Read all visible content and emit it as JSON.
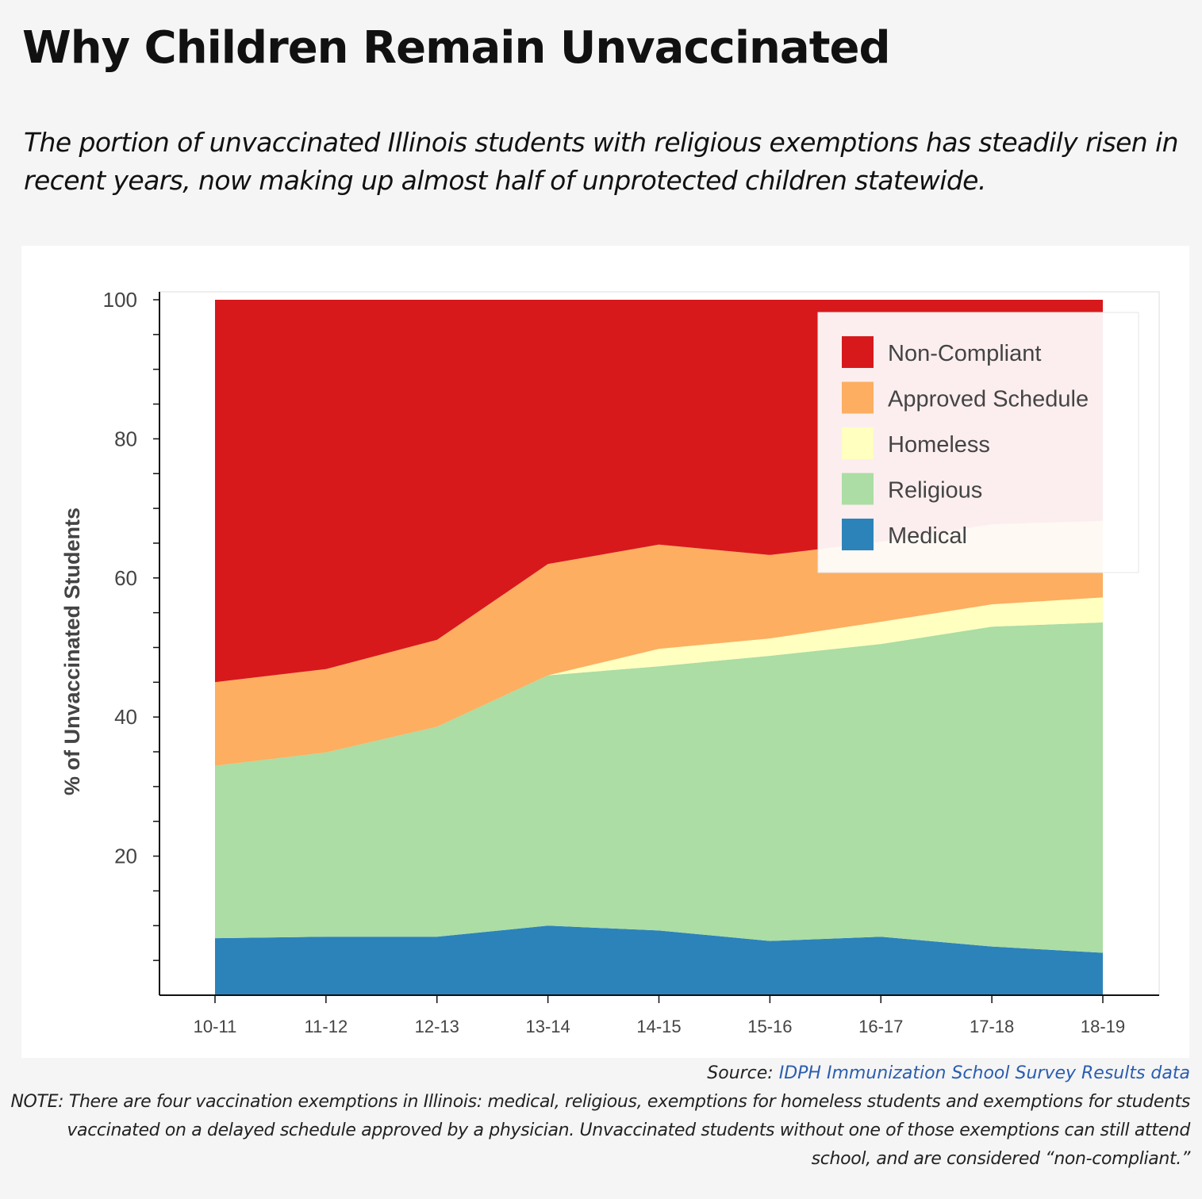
{
  "title": "Why Children Remain Unvaccinated",
  "subtitle": "The portion of unvaccinated Illinois students with religious exemptions has steadily risen in recent years, now making up almost half of unprotected children statewide.",
  "colors": {
    "background": "#f5f5f5",
    "panel": "#ffffff",
    "link": "#2a5db0"
  },
  "chart_data": {
    "type": "area",
    "stacked": true,
    "categories": [
      "10-11",
      "11-12",
      "12-13",
      "13-14",
      "14-15",
      "15-16",
      "16-17",
      "17-18",
      "18-19"
    ],
    "series": [
      {
        "name": "Medical",
        "color": "#2c83b9",
        "values": [
          8.2,
          8.4,
          8.4,
          10.0,
          9.3,
          7.8,
          8.4,
          7.0,
          6.1
        ]
      },
      {
        "name": "Religious",
        "color": "#abdda4",
        "values": [
          24.8,
          26.5,
          30.2,
          36.0,
          38.0,
          41.0,
          42.1,
          46.0,
          47.5
        ]
      },
      {
        "name": "Homeless",
        "color": "#ffffbf",
        "values": [
          0.0,
          0.0,
          0.0,
          0.0,
          2.5,
          2.5,
          3.2,
          3.2,
          3.6
        ]
      },
      {
        "name": "Approved Schedule",
        "color": "#fdae61",
        "values": [
          12.0,
          12.0,
          12.5,
          16.0,
          15.0,
          12.0,
          11.5,
          11.5,
          11.0
        ]
      },
      {
        "name": "Non-Compliant",
        "color": "#d7191c",
        "values": [
          55.0,
          53.1,
          48.9,
          38.0,
          35.2,
          36.7,
          34.8,
          32.3,
          31.8
        ]
      }
    ],
    "ylabel": "% of Unvaccinated Students",
    "xlabel": "",
    "ylim": [
      0,
      100
    ],
    "yticks": [
      20,
      40,
      60,
      80,
      100
    ],
    "legend_position": "top-right",
    "legend_order": [
      "Non-Compliant",
      "Approved Schedule",
      "Homeless",
      "Religious",
      "Medical"
    ]
  },
  "footer": {
    "source_prefix": "Source: ",
    "source_link": "IDPH Immunization School Survey Results data",
    "note": "NOTE: There are four vaccination exemptions in Illinois: medical, religious, exemptions for homeless students and exemptions for students vaccinated on a delayed schedule approved by a physician. Unvaccinated students without one of those exemptions can still attend school, and are considered “non-compliant.”"
  }
}
